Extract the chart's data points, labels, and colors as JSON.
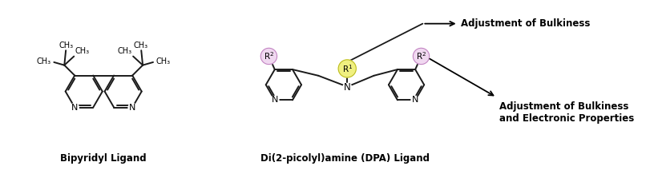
{
  "background_color": "#ffffff",
  "title_left": "Bipyridyl Ligand",
  "title_right": "Di(2-picolyl)amine (DPA) Ligand",
  "annotation1": "Adjustment of Bulkiness",
  "annotation2": "Adjustment of Bulkiness\nand Electronic Properties",
  "r1_bg": "#f0f080",
  "r2_bg": "#f0d8f0",
  "bond_color": "#1a1a1a",
  "bond_width": 1.4,
  "font_size_title": 8.5,
  "font_size_annotation": 7.5,
  "font_size_atom": 7.0,
  "font_size_r": 7.5
}
